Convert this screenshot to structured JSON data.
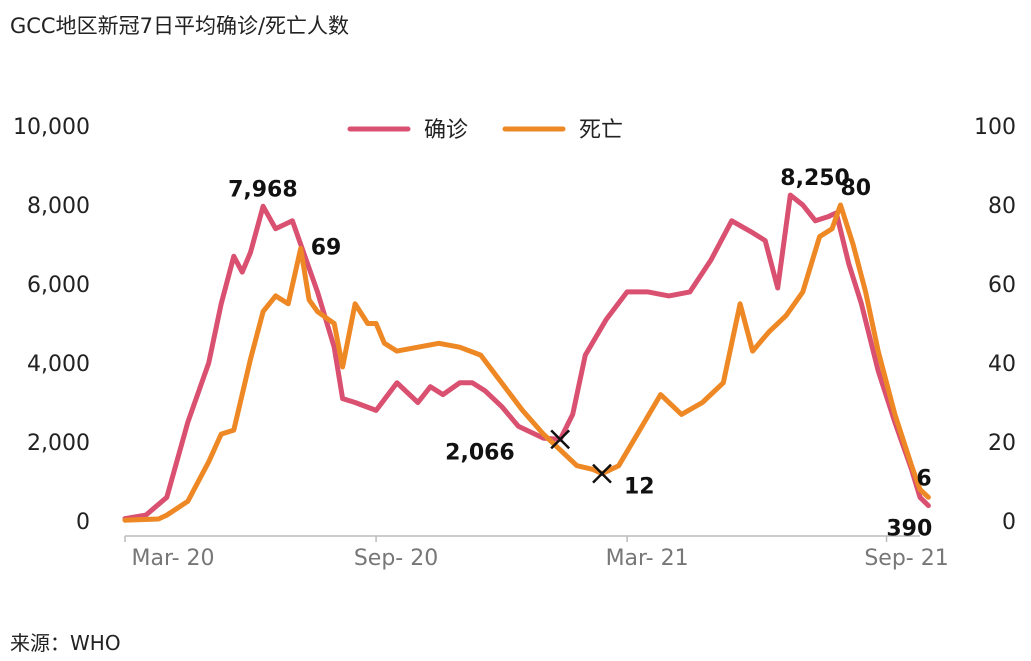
{
  "page": {
    "title": "GCC地区新冠7日平均确诊/死亡人数",
    "source": "来源：WHO"
  },
  "chart_data": {
    "type": "line",
    "title": "GCC地区新冠7日平均确诊/死亡人数",
    "x_labels": [
      "Mar- 20",
      "Sep- 20",
      "Mar- 21",
      "Sep- 21"
    ],
    "y_left": {
      "range": [
        0,
        10000
      ],
      "ticks": [
        "0",
        "2,000",
        "4,000",
        "6,000",
        "8,000",
        "10,000"
      ]
    },
    "y_right": {
      "range": [
        0,
        100
      ],
      "ticks": [
        "0",
        "20",
        "40",
        "60",
        "80",
        "100"
      ]
    },
    "legend": [
      {
        "name": "确诊",
        "color": "#d95070"
      },
      {
        "name": "死亡",
        "color": "#ee8825"
      }
    ],
    "x_range": [
      0,
      19
    ],
    "series": [
      {
        "name": "确诊",
        "axis": "left",
        "color": "#d95070",
        "points": [
          [
            0,
            60
          ],
          [
            0.5,
            150
          ],
          [
            1.0,
            600
          ],
          [
            1.5,
            2500
          ],
          [
            2.0,
            4000
          ],
          [
            2.3,
            5500
          ],
          [
            2.6,
            6700
          ],
          [
            2.8,
            6300
          ],
          [
            3.0,
            6800
          ],
          [
            3.3,
            7968
          ],
          [
            3.6,
            7400
          ],
          [
            4.0,
            7600
          ],
          [
            4.3,
            6700
          ],
          [
            4.6,
            5800
          ],
          [
            5.0,
            4400
          ],
          [
            5.2,
            3100
          ],
          [
            5.5,
            3000
          ],
          [
            6.0,
            2800
          ],
          [
            6.5,
            3500
          ],
          [
            7.0,
            3000
          ],
          [
            7.3,
            3400
          ],
          [
            7.6,
            3200
          ],
          [
            8.0,
            3500
          ],
          [
            8.3,
            3500
          ],
          [
            8.6,
            3300
          ],
          [
            9.0,
            2900
          ],
          [
            9.4,
            2400
          ],
          [
            10.0,
            2100
          ],
          [
            10.4,
            2066
          ],
          [
            10.7,
            2700
          ],
          [
            11.0,
            4200
          ],
          [
            11.5,
            5100
          ],
          [
            12.0,
            5800
          ],
          [
            12.5,
            5800
          ],
          [
            13.0,
            5700
          ],
          [
            13.5,
            5800
          ],
          [
            14.0,
            6600
          ],
          [
            14.5,
            7600
          ],
          [
            15.0,
            7300
          ],
          [
            15.3,
            7100
          ],
          [
            15.6,
            5900
          ],
          [
            15.9,
            8250
          ],
          [
            16.2,
            8000
          ],
          [
            16.5,
            7600
          ],
          [
            16.8,
            7700
          ],
          [
            17.0,
            7800
          ],
          [
            17.3,
            6500
          ],
          [
            17.6,
            5500
          ],
          [
            18.0,
            3800
          ],
          [
            18.4,
            2500
          ],
          [
            18.8,
            1300
          ],
          [
            19.0,
            600
          ],
          [
            19.2,
            390
          ]
        ]
      },
      {
        "name": "死亡",
        "axis": "right",
        "color": "#ee8825",
        "points": [
          [
            0,
            0.2
          ],
          [
            0.8,
            0.5
          ],
          [
            1.0,
            1.5
          ],
          [
            1.5,
            5
          ],
          [
            2.0,
            15
          ],
          [
            2.3,
            22
          ],
          [
            2.6,
            23
          ],
          [
            3.0,
            41
          ],
          [
            3.3,
            53
          ],
          [
            3.6,
            57
          ],
          [
            3.9,
            55
          ],
          [
            4.2,
            69
          ],
          [
            4.4,
            56
          ],
          [
            4.6,
            53
          ],
          [
            5.0,
            50
          ],
          [
            5.2,
            39
          ],
          [
            5.5,
            55
          ],
          [
            5.8,
            50
          ],
          [
            6.0,
            50
          ],
          [
            6.2,
            45
          ],
          [
            6.5,
            43
          ],
          [
            7.0,
            44
          ],
          [
            7.5,
            45
          ],
          [
            8.0,
            44
          ],
          [
            8.5,
            42
          ],
          [
            9.0,
            35
          ],
          [
            9.5,
            28
          ],
          [
            10.0,
            22
          ],
          [
            10.4,
            18
          ],
          [
            10.8,
            14
          ],
          [
            11.2,
            13
          ],
          [
            11.4,
            12
          ],
          [
            11.8,
            14
          ],
          [
            12.3,
            23
          ],
          [
            12.8,
            32
          ],
          [
            13.3,
            27
          ],
          [
            13.8,
            30
          ],
          [
            14.3,
            35
          ],
          [
            14.7,
            55
          ],
          [
            15.0,
            43
          ],
          [
            15.4,
            48
          ],
          [
            15.8,
            52
          ],
          [
            16.2,
            58
          ],
          [
            16.6,
            72
          ],
          [
            16.9,
            74
          ],
          [
            17.1,
            80
          ],
          [
            17.4,
            70
          ],
          [
            17.7,
            58
          ],
          [
            18.0,
            43
          ],
          [
            18.4,
            27
          ],
          [
            18.8,
            14
          ],
          [
            19.0,
            8
          ],
          [
            19.2,
            6
          ]
        ]
      }
    ],
    "annotations": [
      {
        "text": "7,968",
        "series": "确诊",
        "x": 3.3,
        "value": 7968,
        "marker": false
      },
      {
        "text": "69",
        "series": "死亡",
        "x": 4.2,
        "value": 69,
        "marker": false
      },
      {
        "text": "2,066",
        "series": "确诊",
        "x": 10.4,
        "value": 2066,
        "marker": true
      },
      {
        "text": "12",
        "series": "死亡",
        "x": 11.4,
        "value": 12,
        "marker": true
      },
      {
        "text": "8,250",
        "series": "确诊",
        "x": 15.9,
        "value": 8250,
        "marker": false
      },
      {
        "text": "80",
        "series": "死亡",
        "x": 17.1,
        "value": 80,
        "marker": false
      },
      {
        "text": "6",
        "series": "死亡",
        "x": 19.2,
        "value": 6,
        "marker": false
      },
      {
        "text": "390",
        "series": "确诊",
        "x": 19.2,
        "value": 390,
        "marker": false
      }
    ]
  }
}
